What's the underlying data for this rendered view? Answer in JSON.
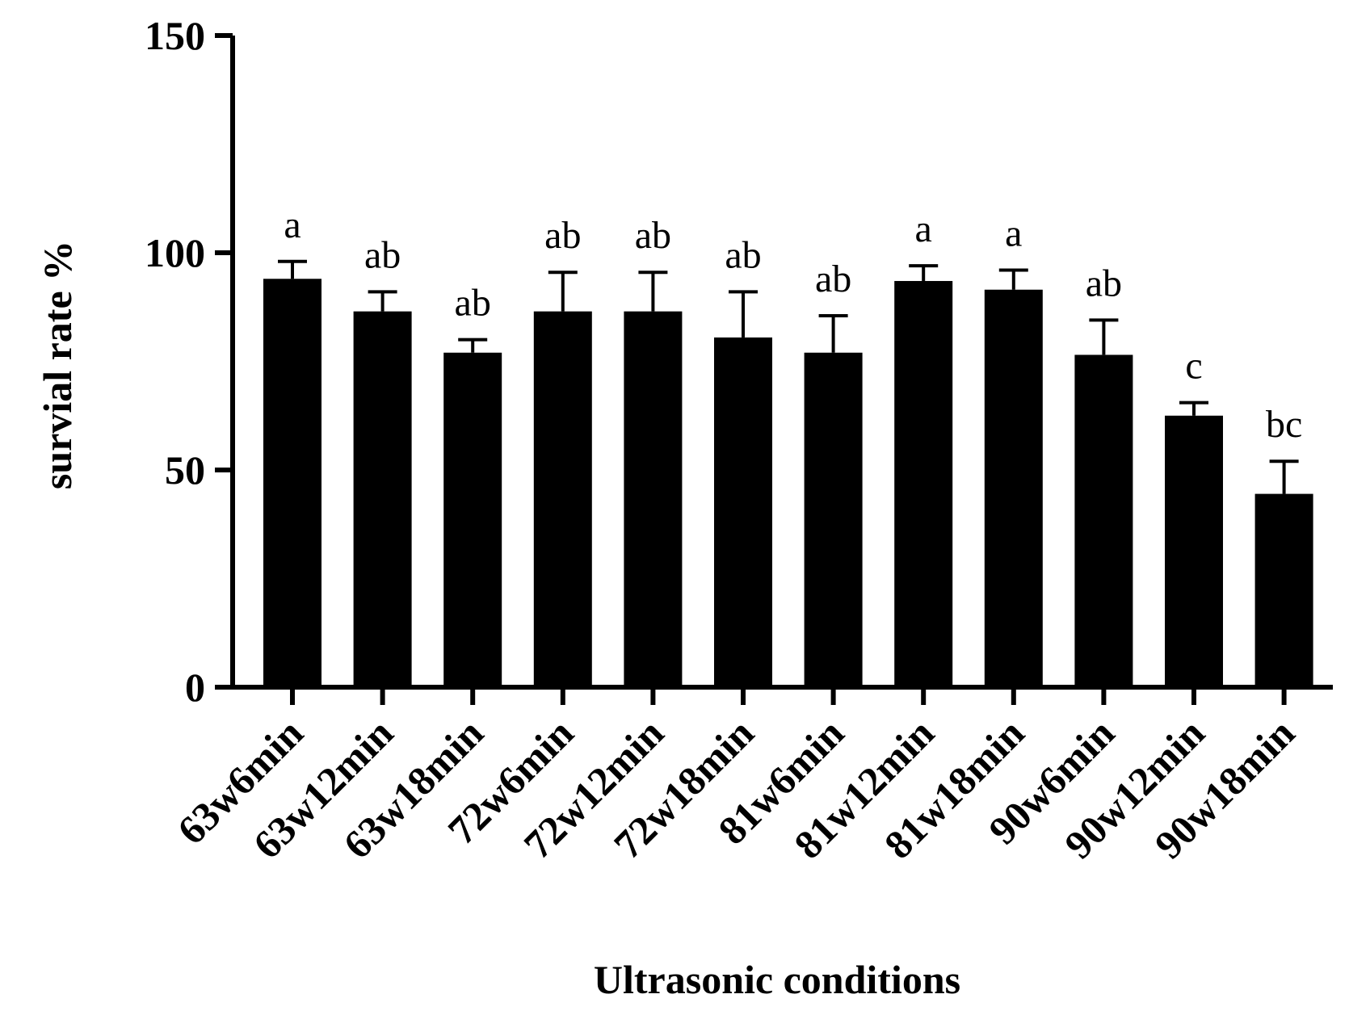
{
  "chart_data": {
    "type": "bar",
    "xlabel": "Ultrasonic conditions",
    "ylabel": "survial rate  %",
    "ylim": [
      0,
      150
    ],
    "yticks": [
      0,
      50,
      100,
      150
    ],
    "categories": [
      "63w6min",
      "63w12min",
      "63w18min",
      "72w6min",
      "72w12min",
      "72w18min",
      "81w6min",
      "81w12min",
      "81w18min",
      "90w6min",
      "90w12min",
      "90w18min"
    ],
    "values": [
      94,
      86.5,
      77,
      86.5,
      86.5,
      80.5,
      77,
      93.5,
      91.5,
      76.5,
      62.5,
      44.5
    ],
    "error_upper": [
      98,
      91,
      80,
      95.5,
      95.5,
      91,
      85.5,
      97,
      96,
      84.5,
      65.5,
      52
    ],
    "significance": [
      "a",
      "ab",
      "ab",
      "ab",
      "ab",
      "ab",
      "ab",
      "a",
      "a",
      "ab",
      "c",
      "bc"
    ],
    "bar_color": "#000000",
    "grid": false,
    "legend": "none"
  }
}
